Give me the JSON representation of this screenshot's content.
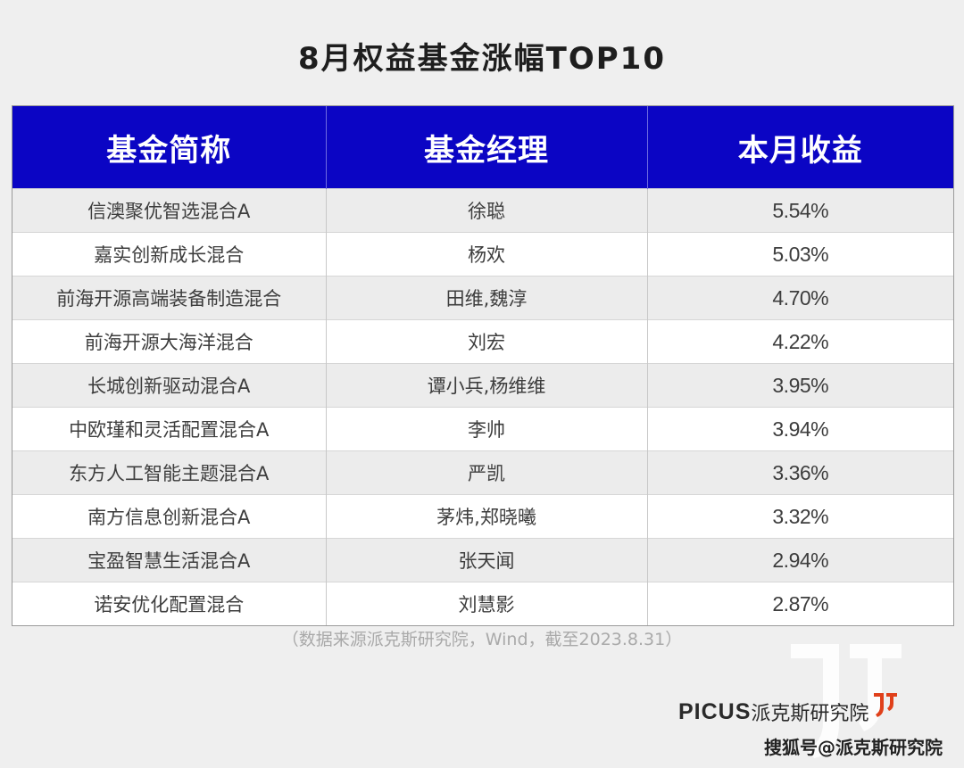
{
  "title": "8月权益基金涨幅TOP10",
  "table": {
    "headers": [
      "基金简称",
      "基金经理",
      "本月收益"
    ],
    "rows": [
      [
        "信澳聚优智选混合A",
        "徐聪",
        "5.54%"
      ],
      [
        "嘉实创新成长混合",
        "杨欢",
        "5.03%"
      ],
      [
        "前海开源高端装备制造混合",
        "田维,魏淳",
        "4.70%"
      ],
      [
        "前海开源大海洋混合",
        "刘宏",
        "4.22%"
      ],
      [
        "长城创新驱动混合A",
        "谭小兵,杨维维",
        "3.95%"
      ],
      [
        "中欧瑾和灵活配置混合A",
        "李帅",
        "3.94%"
      ],
      [
        "东方人工智能主题混合A",
        "严凯",
        "3.36%"
      ],
      [
        "南方信息创新混合A",
        "茅炜,郑晓曦",
        "3.32%"
      ],
      [
        "宝盈智慧生活混合A",
        "张天闻",
        "2.94%"
      ],
      [
        "诺安优化配置混合",
        "刘慧影",
        "2.87%"
      ]
    ]
  },
  "source_note": "（数据来源派克斯研究院，Wind，截至2023.8.31）",
  "brand": {
    "en": "PICUS",
    "cn": "派克斯研究院"
  },
  "watermark_text": "搜狐号@派克斯研究院",
  "colors": {
    "header_bg": "#0b05c4",
    "stripe": "#ececec",
    "brand_accent": "#e0401a"
  }
}
